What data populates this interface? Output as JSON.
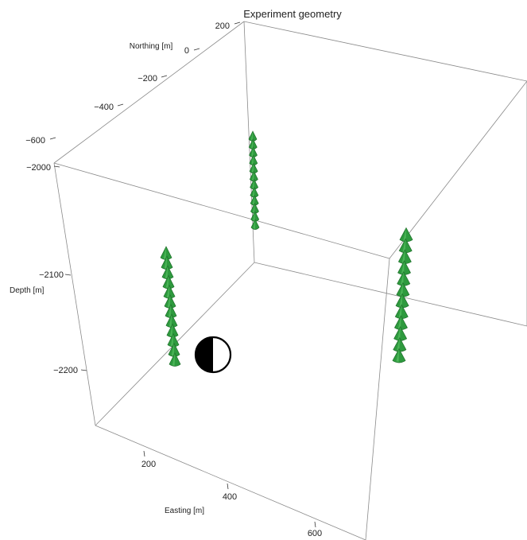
{
  "title": "Experiment geometry",
  "axes": {
    "northing": {
      "label": "Northing [m]",
      "ticks": [
        "200",
        "0",
        "−200",
        "−400",
        "−600"
      ]
    },
    "depth": {
      "label": "Depth [m]",
      "ticks": [
        "−2000",
        "−2100",
        "−2200"
      ]
    },
    "easting": {
      "label": "Easting [m]",
      "ticks": [
        "200",
        "400",
        "600"
      ]
    }
  },
  "colors": {
    "receiver": "#2e9a3e",
    "receiver_shade": "#1f6e2b",
    "receiver_light": "#58c062",
    "box_edge": "#8a8a8a",
    "source_dark": "#000000",
    "source_light": "#ffffff"
  },
  "receiver_arrays": [
    {
      "name": "receiver-array-center",
      "receiver_count": 12
    },
    {
      "name": "receiver-array-left",
      "receiver_count": 12
    },
    {
      "name": "receiver-array-right",
      "receiver_count": 12
    }
  ],
  "source": {
    "name": "source-beachball"
  }
}
